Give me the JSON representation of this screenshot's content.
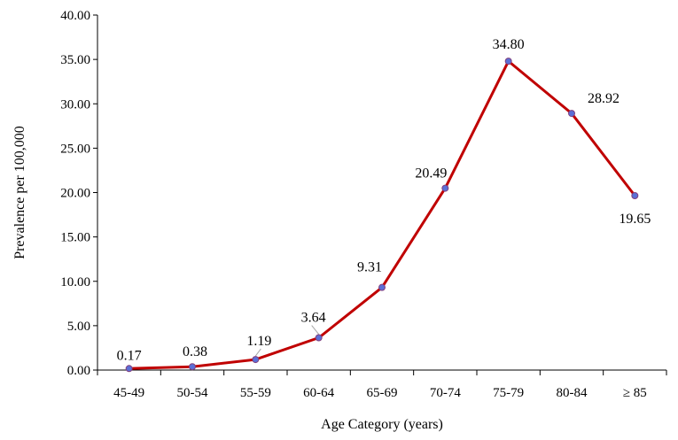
{
  "chart_data": {
    "type": "line",
    "categories": [
      "45-49",
      "50-54",
      "55-59",
      "60-64",
      "65-69",
      "70-74",
      "75-79",
      "80-84",
      "≥ 85"
    ],
    "series": [
      {
        "values": [
          0.17,
          0.38,
          1.19,
          3.64,
          9.31,
          20.49,
          34.8,
          28.92,
          19.65
        ],
        "labels": [
          "0.17",
          "0.38",
          "1.19",
          "3.64",
          "9.31",
          "20.49",
          "34.80",
          "28.92",
          "19.65"
        ],
        "color": "#c00000",
        "marker_color": "#5b6fd6"
      }
    ],
    "title": "",
    "xlabel": "Age Category (years)",
    "ylabel": "Prevalence per 100,000",
    "ylim": [
      0,
      40
    ],
    "yticks": [
      "0.00",
      "5.00",
      "10.00",
      "15.00",
      "20.00",
      "25.00",
      "30.00",
      "35.00",
      "40.00"
    ],
    "grid": false,
    "legend": "none"
  }
}
